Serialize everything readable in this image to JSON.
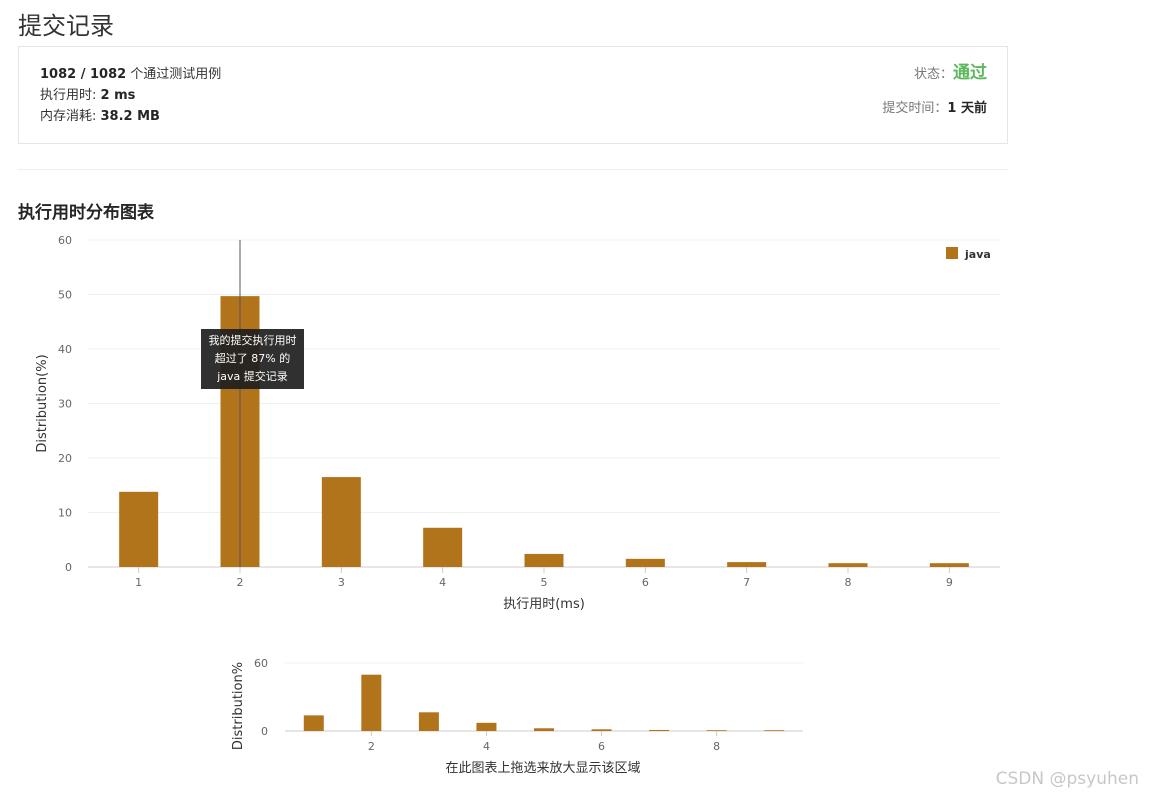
{
  "page": {
    "title": "提交记录"
  },
  "summary": {
    "passed_count": "1082 / 1082",
    "passed_suffix": " 个通过测试用例",
    "runtime_label": "执行用时: ",
    "runtime_value": "2 ms",
    "memory_label": "内存消耗: ",
    "memory_value": "38.2 MB",
    "status_label": "状态：",
    "status_value": "通过",
    "submit_time_label": "提交时间：",
    "submit_time_value": "1 天前"
  },
  "section": {
    "title": "执行用时分布图表"
  },
  "tooltip": {
    "line1": "我的提交执行用时",
    "line2": "超过了 87% 的",
    "line3": "java 提交记录"
  },
  "mini": {
    "caption": "在此图表上拖选来放大显示该区域"
  },
  "watermark": "CSDN @psyuhen",
  "chart_data": [
    {
      "type": "bar",
      "x": [
        1,
        2,
        3,
        4,
        5,
        6,
        7,
        8,
        9
      ],
      "series": [
        {
          "name": "java",
          "values": [
            13.8,
            49.7,
            16.5,
            7.2,
            2.4,
            1.5,
            0.9,
            0.7,
            0.7
          ]
        }
      ],
      "title": "",
      "xlabel": "执行用时(ms)",
      "ylabel": "Distribution(%)",
      "ylim": [
        0,
        60
      ],
      "yticks": [
        0,
        10,
        20,
        30,
        40,
        50,
        60
      ],
      "xticks": [
        1,
        2,
        3,
        4,
        5,
        6,
        7,
        8,
        9
      ],
      "marker_x": 2,
      "grid": true,
      "legend": "top-right",
      "color": "#b2741b"
    },
    {
      "type": "bar",
      "x": [
        1,
        2,
        3,
        4,
        5,
        6,
        7,
        8,
        9
      ],
      "series": [
        {
          "values": [
            13.8,
            49.7,
            16.5,
            7.2,
            2.4,
            1.5,
            0.9,
            0.7,
            0.7
          ]
        }
      ],
      "xlabel": "在此图表上拖选来放大显示该区域",
      "ylabel": "Distribution%",
      "ylim": [
        0,
        60
      ],
      "yticks": [
        0,
        60
      ],
      "xticks": [
        2,
        4,
        6,
        8
      ],
      "grid": true,
      "color": "#b2741b"
    }
  ]
}
